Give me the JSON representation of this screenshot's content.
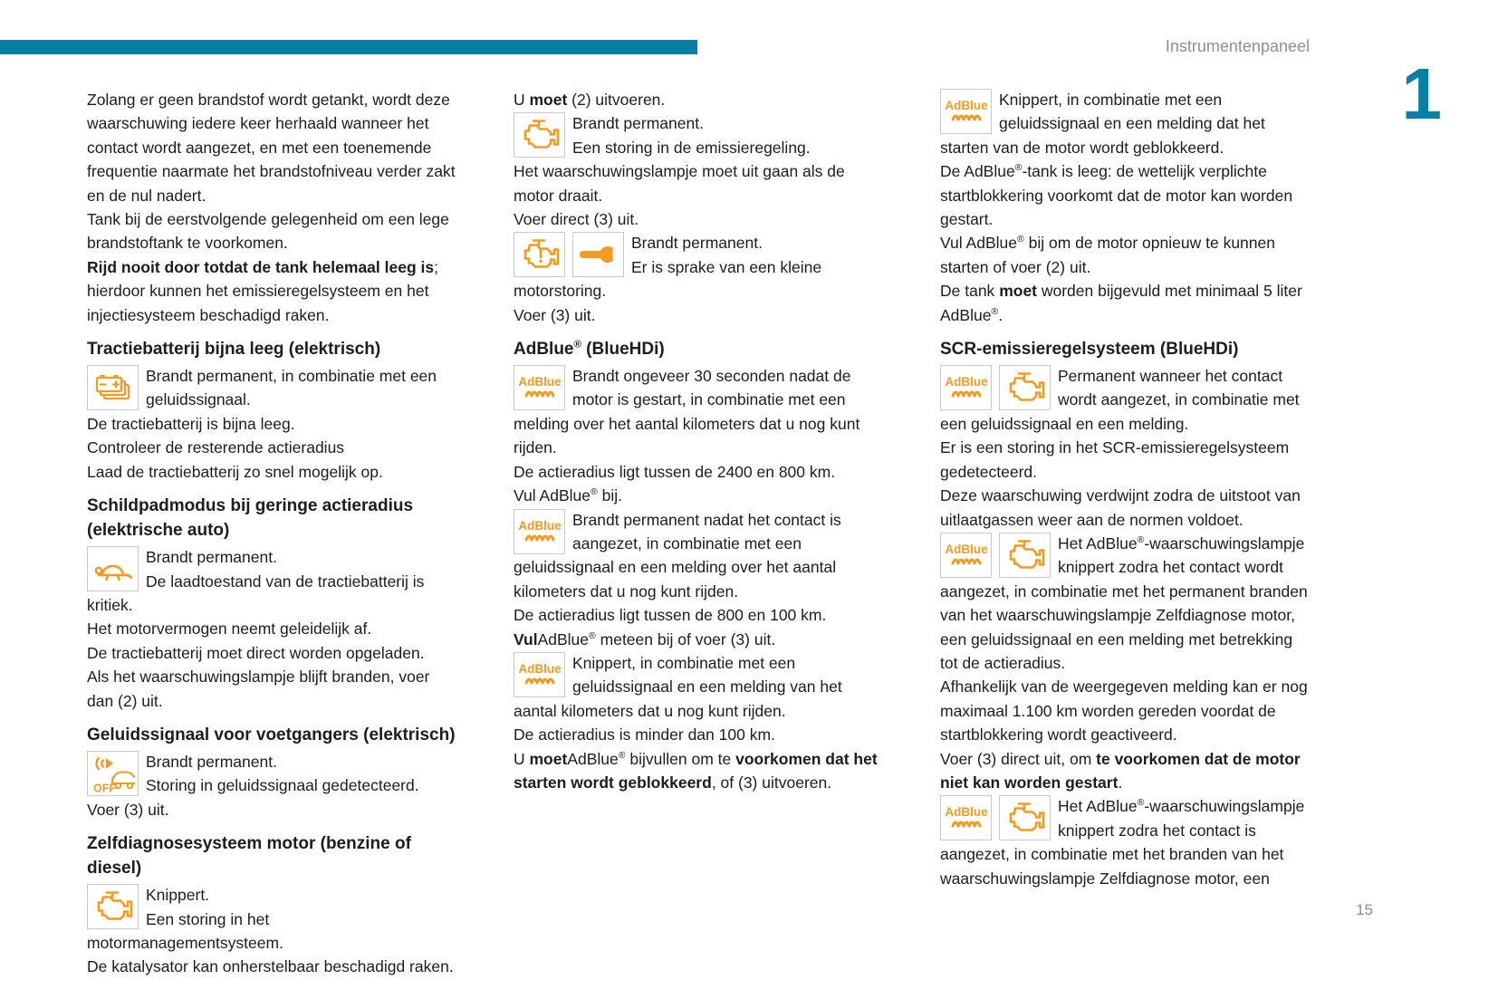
{
  "header": {
    "title": "Instrumentenpaneel",
    "chapter_number": "1"
  },
  "footer": {
    "page_number": "15"
  },
  "colors": {
    "accent_teal": "#0880A6",
    "icon_orange": "#F39A21",
    "body_text": "#1d1d1b",
    "muted_gray": "#8f8f8f",
    "icon_border": "#c9c9c9"
  },
  "icon_labels": {
    "adblue": "AdBlue",
    "off": "OFF"
  },
  "columns": [
    {
      "blocks": [
        {
          "type": "p",
          "seg": [
            {
              "t": "Zolang er geen brandstof wordt getankt, wordt deze waarschuwing iedere keer herhaald wanneer het contact wordt aangezet, en met een toenemende frequentie naarmate het brandstofniveau verder zakt en de nul nadert."
            }
          ]
        },
        {
          "type": "p",
          "seg": [
            {
              "t": "Tank bij de eerstvolgende gelegenheid om een lege brandstoftank te voorkomen."
            }
          ]
        },
        {
          "type": "p",
          "seg": [
            {
              "t": "Rijd nooit door totdat de tank helemaal leeg is",
              "b": 1
            },
            {
              "t": "; hierdoor kunnen het emissieregelsysteem en het injectiesysteem beschadigd raken."
            }
          ]
        },
        {
          "type": "h",
          "seg": [
            {
              "t": "Tractiebatterij bijna leeg (elektrisch)"
            }
          ]
        },
        {
          "type": "ip",
          "icons": [
            "battery-stack"
          ],
          "seg": [
            {
              "t": "Brandt permanent, in combinatie met een geluidssignaal."
            }
          ]
        },
        {
          "type": "p",
          "seg": [
            {
              "t": "De tractiebatterij is bijna leeg."
            }
          ]
        },
        {
          "type": "p",
          "seg": [
            {
              "t": "Controleer de resterende actieradius"
            }
          ]
        },
        {
          "type": "p",
          "seg": [
            {
              "t": "Laad de tractiebatterij zo snel mogelijk op."
            }
          ]
        },
        {
          "type": "h",
          "seg": [
            {
              "t": "Schildpadmodus bij geringe actieradius (elektrische auto)"
            }
          ]
        },
        {
          "type": "ip",
          "icons": [
            "turtle"
          ],
          "seg": [
            {
              "t": "Brandt permanent."
            },
            {
              "br": 1
            },
            {
              "t": "De laadtoestand van de tractiebatterij is kritiek."
            }
          ]
        },
        {
          "type": "p",
          "seg": [
            {
              "t": "Het motorvermogen neemt geleidelijk af."
            }
          ]
        },
        {
          "type": "p",
          "seg": [
            {
              "t": "De tractiebatterij moet direct worden opgeladen."
            }
          ]
        },
        {
          "type": "p",
          "seg": [
            {
              "t": "Als het waarschuwingslampje blijft branden, voer dan (2) uit."
            }
          ]
        },
        {
          "type": "h",
          "seg": [
            {
              "t": "Geluidssignaal voor voetgangers (elektrisch)"
            }
          ]
        },
        {
          "type": "ip",
          "icons": [
            "pedestrian-sound-off"
          ],
          "seg": [
            {
              "t": "Brandt permanent."
            },
            {
              "br": 1
            },
            {
              "t": "Storing in geluidssignaal gedetecteerd."
            }
          ]
        },
        {
          "type": "p",
          "seg": [
            {
              "t": "Voer (3) uit."
            }
          ]
        },
        {
          "type": "h",
          "seg": [
            {
              "t": "Zelfdiagnosesysteem motor (benzine of diesel)"
            }
          ]
        },
        {
          "type": "ip",
          "icons": [
            "engine"
          ],
          "seg": [
            {
              "t": "Knippert."
            },
            {
              "br": 1
            },
            {
              "t": "Een storing in het motormanagementsysteem."
            }
          ]
        },
        {
          "type": "p",
          "seg": [
            {
              "t": "De katalysator kan onherstelbaar beschadigd raken."
            }
          ]
        }
      ]
    },
    {
      "blocks": [
        {
          "type": "p",
          "seg": [
            {
              "t": "U "
            },
            {
              "t": "moet",
              "b": 1
            },
            {
              "t": " (2) uitvoeren."
            }
          ]
        },
        {
          "type": "ip",
          "icons": [
            "engine"
          ],
          "seg": [
            {
              "t": "Brandt permanent."
            },
            {
              "br": 1
            },
            {
              "t": "Een storing in de emissieregeling."
            }
          ]
        },
        {
          "type": "p",
          "seg": [
            {
              "t": "Het waarschuwingslampje moet uit gaan als de motor draait."
            }
          ]
        },
        {
          "type": "p",
          "seg": [
            {
              "t": "Voer direct (3) uit."
            }
          ]
        },
        {
          "type": "ip",
          "icons": [
            "engine-warning",
            "wrench"
          ],
          "seg": [
            {
              "t": "Brandt permanent."
            },
            {
              "br": 1
            },
            {
              "t": "Er is sprake van een kleine motorstoring."
            }
          ]
        },
        {
          "type": "p",
          "seg": [
            {
              "t": "Voer (3) uit."
            }
          ]
        },
        {
          "type": "h",
          "seg": [
            {
              "t": "AdBlue"
            },
            {
              "t": "®",
              "s": 1
            },
            {
              "t": " (BlueHDi)"
            }
          ]
        },
        {
          "type": "ip",
          "icons": [
            "adblue"
          ],
          "seg": [
            {
              "t": "Brandt ongeveer 30 seconden nadat de motor is gestart, in combinatie met een melding over het aantal kilometers dat u nog kunt rijden."
            }
          ]
        },
        {
          "type": "p",
          "seg": [
            {
              "t": "De actieradius ligt tussen de 2400 en 800 km."
            }
          ]
        },
        {
          "type": "p",
          "seg": [
            {
              "t": "Vul AdBlue"
            },
            {
              "t": "®",
              "s": 1
            },
            {
              "t": " bij."
            }
          ]
        },
        {
          "type": "ip",
          "icons": [
            "adblue"
          ],
          "seg": [
            {
              "t": "Brandt permanent nadat het contact is aangezet, in combinatie met een geluidssignaal en een melding over het aantal kilometers dat u nog kunt rijden."
            }
          ]
        },
        {
          "type": "p",
          "seg": [
            {
              "t": "De actieradius ligt tussen de 800 en 100 km."
            }
          ]
        },
        {
          "type": "p",
          "seg": [
            {
              "t": "Vul",
              "b": 1
            },
            {
              "t": "AdBlue"
            },
            {
              "t": "®",
              "s": 1
            },
            {
              "t": " meteen bij of voer (3) uit."
            }
          ]
        },
        {
          "type": "ip",
          "icons": [
            "adblue"
          ],
          "seg": [
            {
              "t": "Knippert, in combinatie met een geluidssignaal en een melding van het aantal kilometers dat u nog kunt rijden."
            }
          ]
        },
        {
          "type": "p",
          "seg": [
            {
              "t": "De actieradius is minder dan 100 km."
            }
          ]
        },
        {
          "type": "p",
          "seg": [
            {
              "t": "U "
            },
            {
              "t": "moet",
              "b": 1
            },
            {
              "t": "AdBlue"
            },
            {
              "t": "®",
              "s": 1
            },
            {
              "t": " bijvullen om te "
            },
            {
              "t": "voorkomen dat het starten wordt geblokkeerd",
              "b": 1
            },
            {
              "t": ", of (3) uitvoeren."
            }
          ]
        }
      ]
    },
    {
      "blocks": [
        {
          "type": "ip",
          "icons": [
            "adblue"
          ],
          "seg": [
            {
              "t": "Knippert, in combinatie met een geluidssignaal en een melding dat het starten van de motor wordt geblokkeerd."
            }
          ]
        },
        {
          "type": "p",
          "seg": [
            {
              "t": "De AdBlue"
            },
            {
              "t": "®",
              "s": 1
            },
            {
              "t": "-tank is leeg: de wettelijk verplichte startblokkering voorkomt dat de motor kan worden gestart."
            }
          ]
        },
        {
          "type": "p",
          "seg": [
            {
              "t": "Vul AdBlue"
            },
            {
              "t": "®",
              "s": 1
            },
            {
              "t": " bij om de motor opnieuw te kunnen starten of voer (2) uit."
            }
          ]
        },
        {
          "type": "p",
          "seg": [
            {
              "t": "De tank "
            },
            {
              "t": "moet",
              "b": 1
            },
            {
              "t": " worden bijgevuld met minimaal 5 liter AdBlue"
            },
            {
              "t": "®",
              "s": 1
            },
            {
              "t": "."
            }
          ]
        },
        {
          "type": "h",
          "seg": [
            {
              "t": "SCR-emissieregelsysteem (BlueHDi)"
            }
          ]
        },
        {
          "type": "ip",
          "icons": [
            "adblue",
            "engine"
          ],
          "seg": [
            {
              "t": "Permanent wanneer het contact wordt aangezet, in combinatie met een geluidssignaal en een melding."
            }
          ]
        },
        {
          "type": "p",
          "seg": [
            {
              "t": "Er is een storing in het SCR-emissieregelsysteem gedetecteerd."
            }
          ]
        },
        {
          "type": "p",
          "seg": [
            {
              "t": "Deze waarschuwing verdwijnt zodra de uitstoot van uitlaatgassen weer aan de normen voldoet."
            }
          ]
        },
        {
          "type": "ip",
          "icons": [
            "adblue",
            "engine"
          ],
          "seg": [
            {
              "t": "Het AdBlue"
            },
            {
              "t": "®",
              "s": 1
            },
            {
              "t": "-waarschuwingslampje knippert zodra het contact wordt aangezet, in combinatie met het permanent branden van het waarschuwingslampje Zelfdiagnose motor, een geluidssignaal en een melding met betrekking tot de actieradius."
            }
          ]
        },
        {
          "type": "p",
          "seg": [
            {
              "t": "Afhankelijk van de weergegeven melding kan er nog maximaal 1.100 km worden gereden voordat de startblokkering wordt geactiveerd."
            }
          ]
        },
        {
          "type": "p",
          "seg": [
            {
              "t": "Voer (3) direct uit, om "
            },
            {
              "t": "te voorkomen dat de motor niet kan worden gestart",
              "b": 1
            },
            {
              "t": "."
            }
          ]
        },
        {
          "type": "ip",
          "icons": [
            "adblue",
            "engine"
          ],
          "seg": [
            {
              "t": "Het AdBlue"
            },
            {
              "t": "®",
              "s": 1
            },
            {
              "t": "-waarschuwingslampje knippert zodra het contact is aangezet, in combinatie met het branden van het waarschuwingslampje Zelfdiagnose motor, een"
            }
          ]
        }
      ]
    }
  ]
}
